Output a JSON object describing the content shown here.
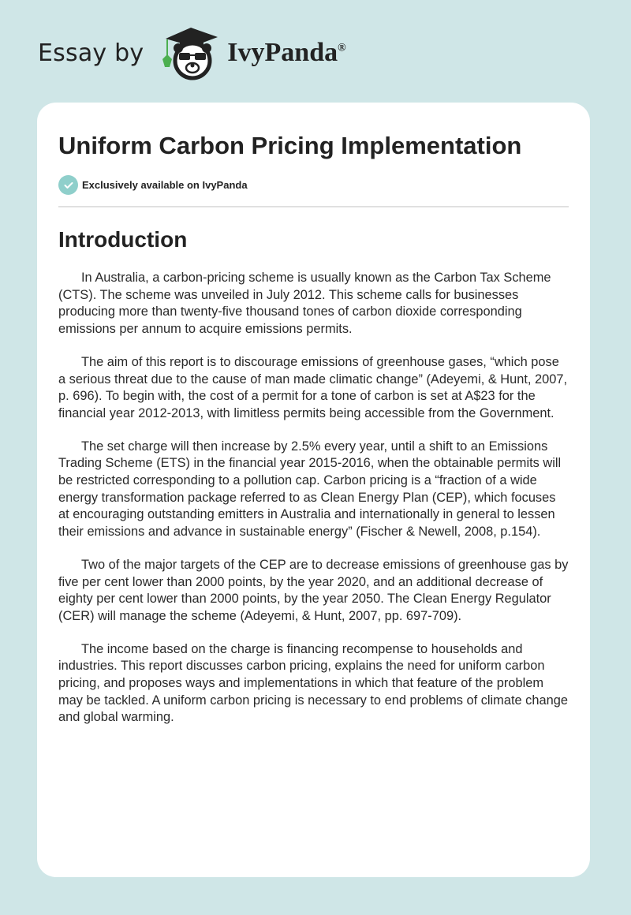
{
  "header": {
    "essay_by": "Essay by",
    "brand": "IvyPanda",
    "registered": "®"
  },
  "article": {
    "title": "Uniform Carbon Pricing Implementation",
    "badge": "Exclusively available on IvyPanda",
    "section_heading": "Introduction",
    "paragraphs": [
      "In Australia, a carbon-pricing scheme is usually known as the Carbon Tax Scheme (CTS). The scheme was unveiled in July 2012. This scheme calls for businesses producing more than twenty-five thousand tones of carbon dioxide corresponding emissions per annum to acquire emissions permits.",
      "The aim of this report is to discourage emissions of greenhouse gases, “which pose a serious threat due to the cause of man made climatic change” (Adeyemi, & Hunt, 2007, p. 696). To begin with, the cost of a permit for a tone of carbon is set at A$23 for the financial year 2012-2013, with limitless permits being accessible from the Government.",
      "The set charge will then increase by 2.5% every year, until a shift to an Emissions Trading Scheme (ETS) in the financial year 2015-2016, when the obtainable permits will be restricted corresponding to a pollution cap. Carbon pricing is a “fraction of a wide energy transformation package referred to as Clean Energy Plan (CEP), which focuses at encouraging outstanding emitters in Australia and internationally in general to lessen their emissions and advance in sustainable energy” (Fischer & Newell, 2008, p.154).",
      "Two of the major targets of the CEP are to decrease emissions of greenhouse gas by five per cent lower than 2000 points, by the year 2020, and an additional decrease of eighty per cent lower than 2000 points, by the year 2050. The Clean Energy Regulator (CER) will manage the scheme (Adeyemi, & Hunt, 2007, pp. 697-709).",
      "The income based on the charge is financing recompense to households and industries. This report discusses carbon pricing, explains the need for uniform carbon pricing, and proposes ways and implementations in which that feature of the problem may be tackled. A uniform carbon pricing is necessary to end problems of climate change and global warming."
    ]
  },
  "colors": {
    "background": "#cfe6e7",
    "badge_check": "#8fcfcb",
    "ivy_green": "#4caf50"
  }
}
